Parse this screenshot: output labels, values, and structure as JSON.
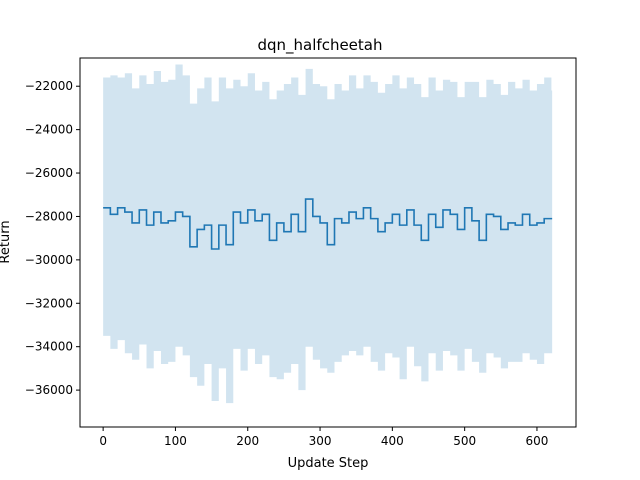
{
  "chart_data": {
    "type": "line",
    "title": "dqn_halfcheetah",
    "xlabel": "Update Step",
    "ylabel": "Return",
    "xlim": [
      -32,
      654
    ],
    "ylim": [
      -37700,
      -20700
    ],
    "xticks": [
      0,
      100,
      200,
      300,
      400,
      500,
      600
    ],
    "yticks": [
      -36000,
      -34000,
      -32000,
      -30000,
      -28000,
      -26000,
      -24000,
      -22000
    ],
    "grid": false,
    "legend": "none",
    "colors": {
      "line": "#1f77b4",
      "band": "#1f77b4"
    },
    "band_opacity": 0.2,
    "series": [
      {
        "x": [
          0,
          10,
          20,
          30,
          40,
          50,
          60,
          70,
          80,
          90,
          100,
          110,
          120,
          130,
          140,
          150,
          160,
          170,
          180,
          190,
          200,
          210,
          220,
          230,
          240,
          250,
          260,
          270,
          280,
          290,
          300,
          310,
          320,
          330,
          340,
          350,
          360,
          370,
          380,
          390,
          400,
          410,
          420,
          430,
          440,
          450,
          460,
          470,
          480,
          490,
          500,
          510,
          520,
          530,
          540,
          550,
          560,
          570,
          580,
          590,
          600,
          610,
          620
        ],
        "mean": [
          -27600,
          -27900,
          -27600,
          -27800,
          -28300,
          -27700,
          -28400,
          -27800,
          -28300,
          -28200,
          -27800,
          -28000,
          -29400,
          -28600,
          -28400,
          -29500,
          -28400,
          -29300,
          -27800,
          -28300,
          -27700,
          -28200,
          -27900,
          -29100,
          -28300,
          -28700,
          -27900,
          -28700,
          -27200,
          -28000,
          -28300,
          -29300,
          -28100,
          -28300,
          -27800,
          -28100,
          -27600,
          -28100,
          -28700,
          -28300,
          -27900,
          -28400,
          -27700,
          -28400,
          -29100,
          -27900,
          -28500,
          -27700,
          -27900,
          -28600,
          -27600,
          -28200,
          -29100,
          -27900,
          -28000,
          -28600,
          -28300,
          -28400,
          -27900,
          -28400,
          -28300,
          -28100,
          -28100
        ],
        "upper": [
          -21600,
          -21500,
          -21600,
          -21400,
          -22100,
          -21500,
          -21900,
          -21300,
          -21800,
          -21700,
          -21000,
          -21500,
          -22800,
          -22100,
          -21600,
          -22700,
          -21600,
          -22100,
          -21700,
          -22000,
          -21400,
          -22200,
          -21800,
          -22600,
          -22200,
          -21900,
          -21600,
          -22400,
          -21200,
          -21900,
          -22000,
          -22600,
          -21900,
          -22200,
          -21500,
          -22100,
          -21500,
          -21800,
          -22300,
          -21900,
          -21500,
          -22100,
          -21600,
          -21900,
          -22500,
          -21600,
          -22200,
          -21700,
          -21800,
          -22500,
          -21800,
          -21800,
          -22500,
          -21700,
          -21900,
          -22400,
          -21800,
          -22100,
          -21700,
          -22200,
          -21900,
          -21600,
          -22200
        ],
        "lower": [
          -33500,
          -34100,
          -33700,
          -34300,
          -34600,
          -33900,
          -35000,
          -34200,
          -34800,
          -34700,
          -34000,
          -34400,
          -35400,
          -35800,
          -34800,
          -36500,
          -35000,
          -36600,
          -34100,
          -35100,
          -34100,
          -34800,
          -34400,
          -35400,
          -35500,
          -35200,
          -34800,
          -36000,
          -34000,
          -34600,
          -35000,
          -35200,
          -34700,
          -34400,
          -34200,
          -34400,
          -34000,
          -34700,
          -35100,
          -34300,
          -34500,
          -35500,
          -34000,
          -34900,
          -35600,
          -34300,
          -35100,
          -34200,
          -34400,
          -35100,
          -34100,
          -34700,
          -35200,
          -34300,
          -34500,
          -35000,
          -34700,
          -34700,
          -34300,
          -34600,
          -34800,
          -34300,
          -34300
        ]
      }
    ]
  }
}
